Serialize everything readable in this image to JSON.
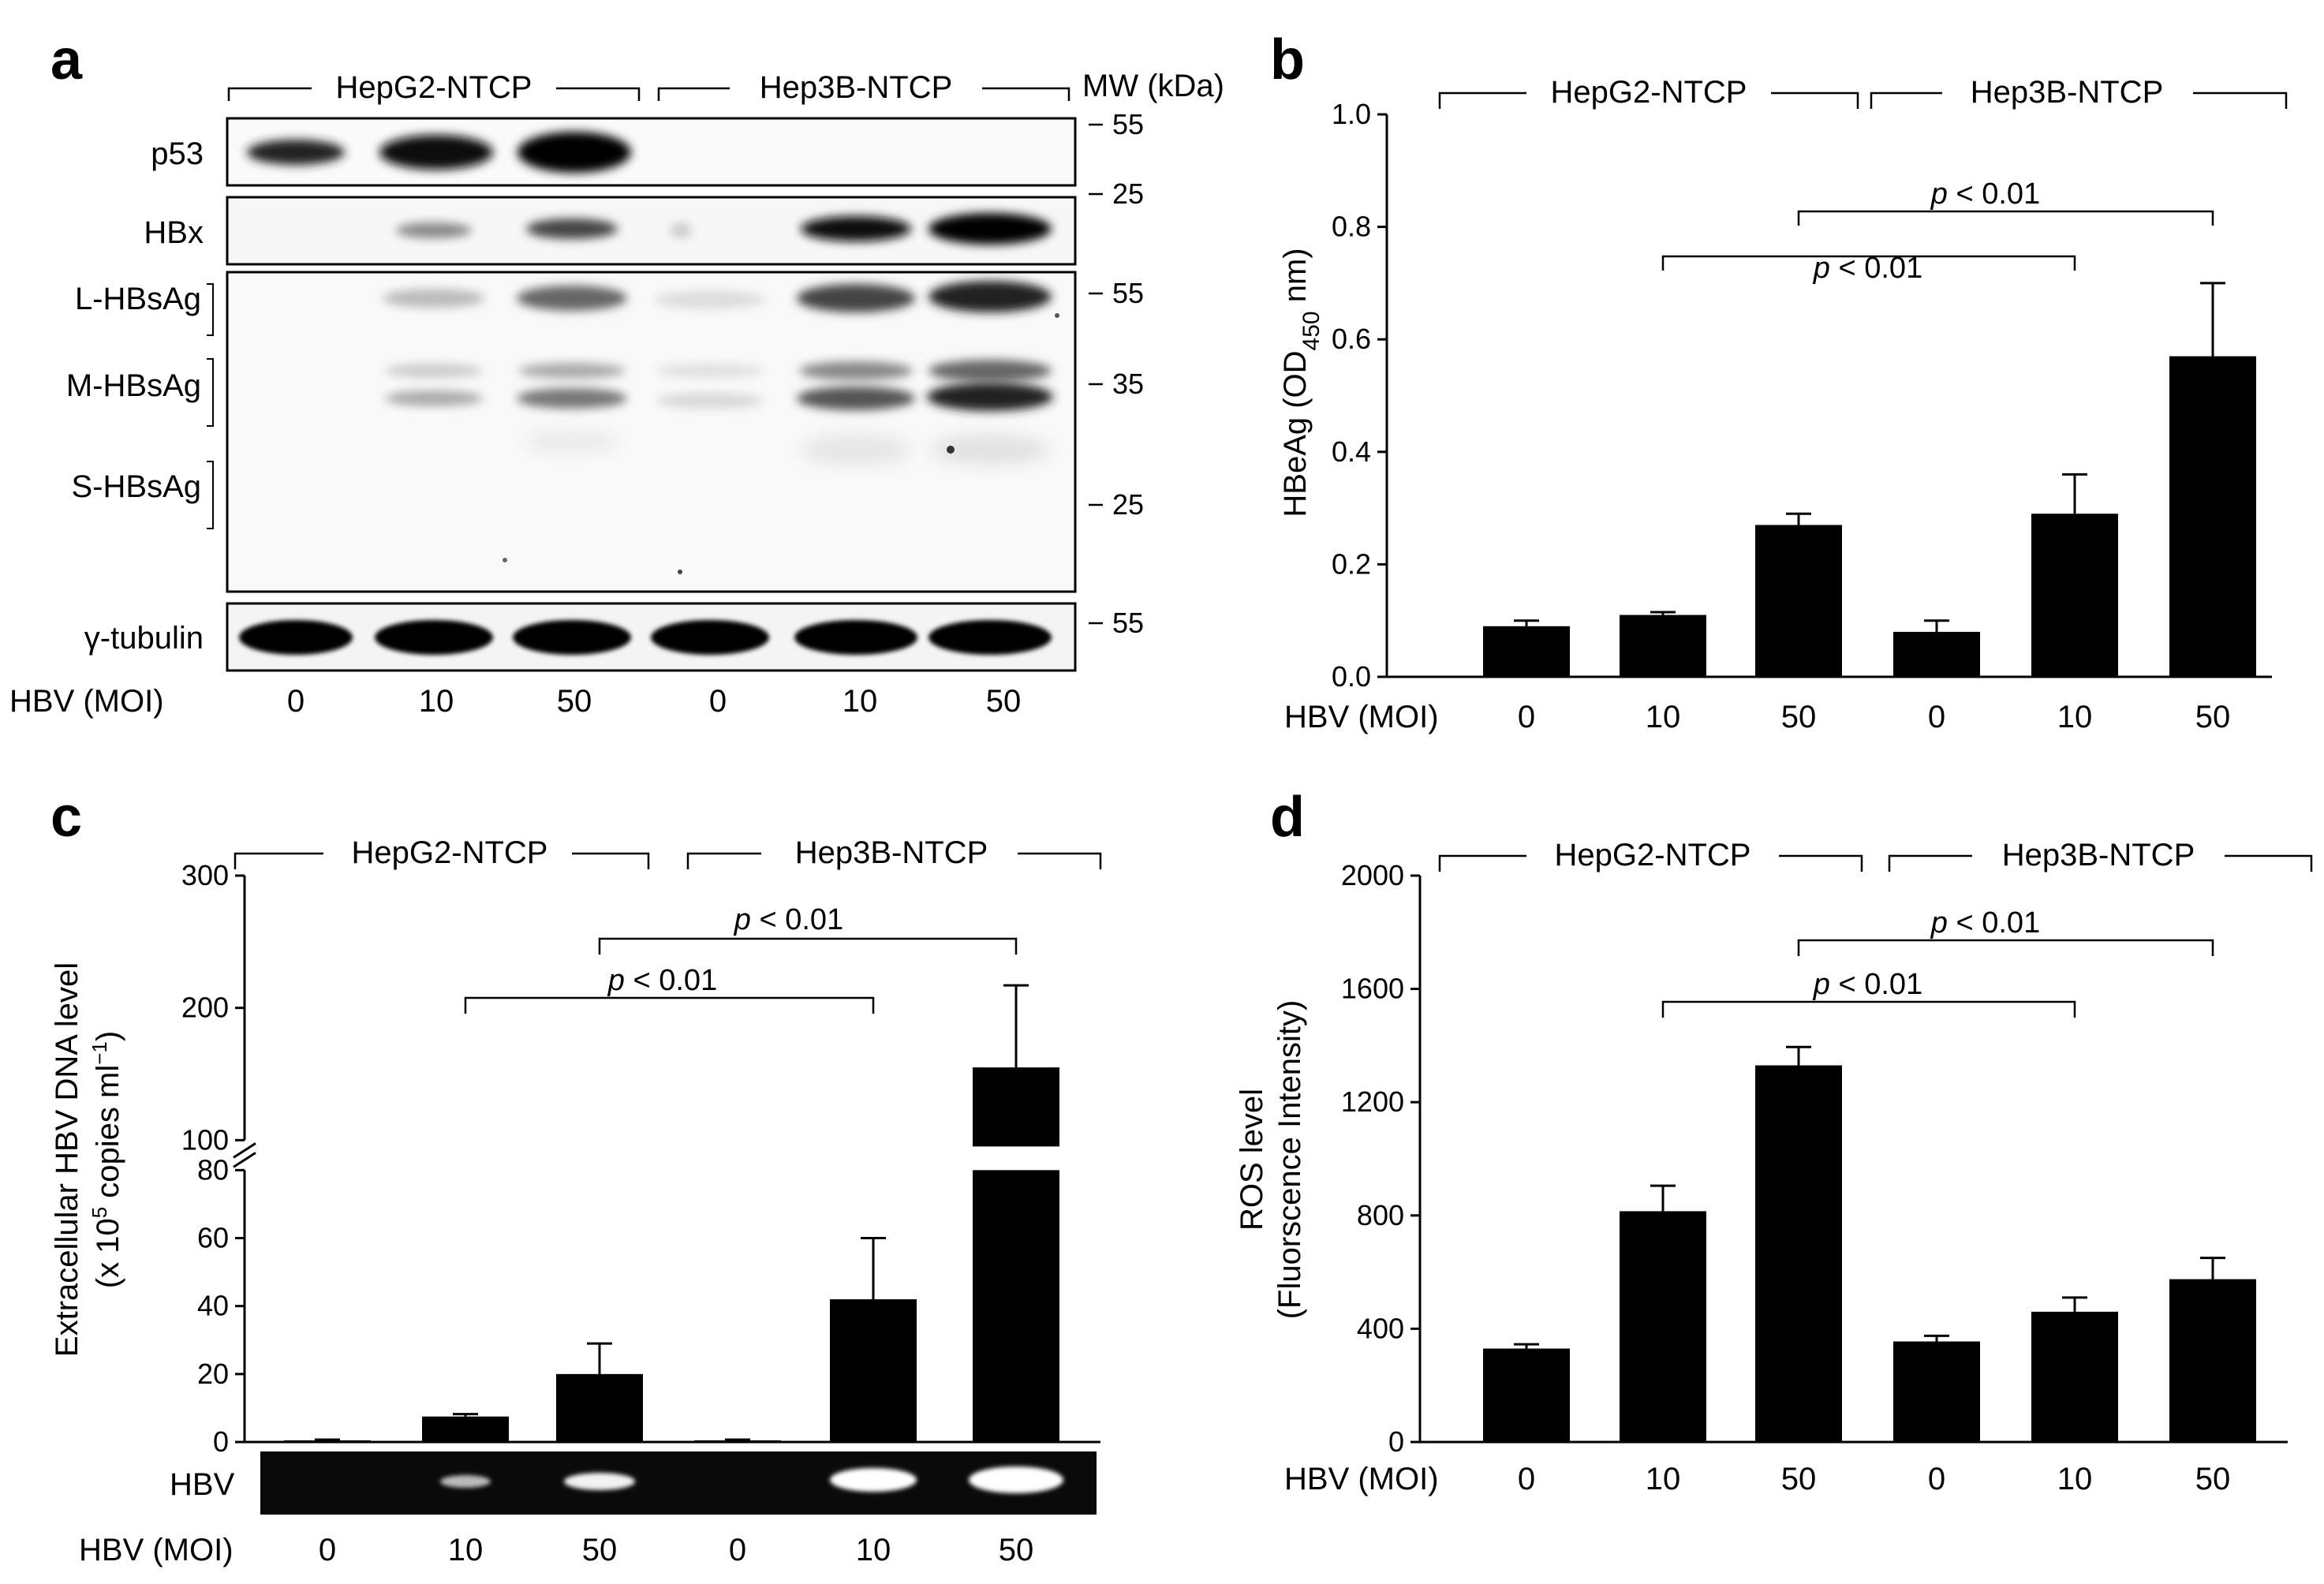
{
  "panels": {
    "a": {
      "label": "a",
      "groups": [
        "HepG2-NTCP",
        "Hep3B-NTCP"
      ],
      "mw_header": "MW (kDa)",
      "rows": [
        {
          "label": "p53",
          "mw": [
            "55",
            "25"
          ]
        },
        {
          "label": "HBx",
          "mw": []
        },
        {
          "label": "L-HBsAg",
          "mw": [
            "55"
          ]
        },
        {
          "label": "M-HBsAg",
          "mw": [
            "35"
          ]
        },
        {
          "label": "S-HBsAg",
          "mw": [
            "25"
          ]
        },
        {
          "label": "γ-tubulin",
          "mw": [
            "55"
          ]
        }
      ],
      "moi_label": "HBV (MOI)",
      "moi": [
        "0",
        "10",
        "50",
        "0",
        "10",
        "50"
      ]
    },
    "b": {
      "label": "b",
      "groups": [
        "HepG2-NTCP",
        "Hep3B-NTCP"
      ],
      "moi_label": "HBV (MOI)",
      "pvalues": [
        {
          "p": "p",
          "rest": " < 0.01"
        },
        {
          "p": "p",
          "rest": " < 0.01"
        }
      ]
    },
    "c": {
      "label": "c",
      "groups": [
        "HepG2-NTCP",
        "Hep3B-NTCP"
      ],
      "moi_label": "HBV (MOI)",
      "gel_label": "HBV",
      "pvalues": [
        {
          "p": "p",
          "rest": " < 0.01"
        },
        {
          "p": "p",
          "rest": " < 0.01"
        }
      ]
    },
    "d": {
      "label": "d",
      "groups": [
        "HepG2-NTCP",
        "Hep3B-NTCP"
      ],
      "moi_label": "HBV (MOI)",
      "pvalues": [
        {
          "p": "p",
          "rest": " < 0.01"
        },
        {
          "p": "p",
          "rest": " < 0.01"
        }
      ]
    }
  },
  "chart_data": [
    {
      "panel": "b",
      "type": "bar",
      "categories": [
        "0",
        "10",
        "50",
        "0",
        "10",
        "50"
      ],
      "values": [
        0.09,
        0.11,
        0.27,
        0.08,
        0.29,
        0.57
      ],
      "errors": [
        0.01,
        0.005,
        0.02,
        0.02,
        0.07,
        0.13
      ],
      "ylabel": "HBeAg (OD450 nm)",
      "ylim": [
        0,
        1.0
      ],
      "yticks": [
        "0.0",
        "0.2",
        "0.4",
        "0.6",
        "0.8",
        "1.0"
      ],
      "comparisons": [
        {
          "from": 1,
          "to": 4,
          "label": "p < 0.01"
        },
        {
          "from": 2,
          "to": 5,
          "label": "p < 0.01"
        }
      ]
    },
    {
      "panel": "c",
      "type": "bar",
      "categories": [
        "0",
        "10",
        "50",
        "0",
        "10",
        "50"
      ],
      "values": [
        0.5,
        7.5,
        20,
        0.5,
        42,
        155
      ],
      "errors": [
        0.2,
        0.7,
        9,
        0.2,
        18,
        62
      ],
      "ylabel": "Extracellular HBV DNA level (x 10^5 copies ml^-1)",
      "ylim": [
        0,
        300
      ],
      "broken_axis": [
        80,
        100
      ],
      "yticks": [
        "0",
        "20",
        "40",
        "60",
        "80",
        "100",
        "200",
        "300"
      ],
      "comparisons": [
        {
          "from": 1,
          "to": 4,
          "label": "p < 0.01"
        },
        {
          "from": 2,
          "to": 5,
          "label": "p < 0.01"
        }
      ]
    },
    {
      "panel": "d",
      "type": "bar",
      "categories": [
        "0",
        "10",
        "50",
        "0",
        "10",
        "50"
      ],
      "values": [
        330,
        815,
        1330,
        355,
        460,
        575
      ],
      "errors": [
        15,
        90,
        65,
        20,
        50,
        75
      ],
      "ylabel": "ROS level (Fluorscence Intensity)",
      "ylim": [
        0,
        2000
      ],
      "yticks": [
        "0",
        "400",
        "800",
        "1200",
        "1600",
        "2000"
      ],
      "comparisons": [
        {
          "from": 1,
          "to": 4,
          "label": "p < 0.01"
        },
        {
          "from": 2,
          "to": 5,
          "label": "p < 0.01"
        }
      ]
    }
  ]
}
